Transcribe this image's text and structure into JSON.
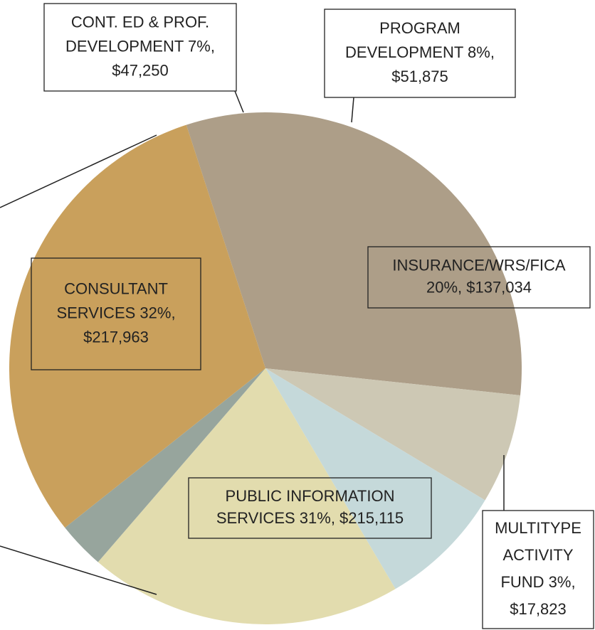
{
  "chart_data": {
    "type": "pie",
    "categories": [
      "CONSULTANT SERVICES",
      "CONT. ED & PROF. DEVELOPMENT",
      "PROGRAM DEVELOPMENT",
      "INSURANCE/WRS/FICA",
      "MULTITYPE ACTIVITY FUND",
      "PUBLIC INFORMATION SERVICES"
    ],
    "labels": [
      [
        "CONSULTANT",
        "SERVICES 32%,",
        "$217,963"
      ],
      [
        "CONT. ED & PROF.",
        "DEVELOPMENT 7%,",
        "$47,250"
      ],
      [
        "PROGRAM",
        "DEVELOPMENT 8%,",
        "$51,875"
      ],
      [
        "INSURANCE/WRS/FICA",
        "20%,  $137,034"
      ],
      [
        "MULTITYPE",
        "ACTIVITY",
        "FUND 3%,",
        "$17,823"
      ],
      [
        "PUBLIC INFORMATION",
        "SERVICES 31%,  $215,115"
      ]
    ],
    "values": [
      32,
      7,
      8,
      20,
      3,
      31
    ],
    "amounts": [
      217963,
      47250,
      51875,
      137034,
      17823,
      215115
    ],
    "colors": [
      "#ad9e88",
      "#cdc8b4",
      "#c5d9da",
      "#e2dcae",
      "#97a59d",
      "#c9a05c"
    ]
  }
}
